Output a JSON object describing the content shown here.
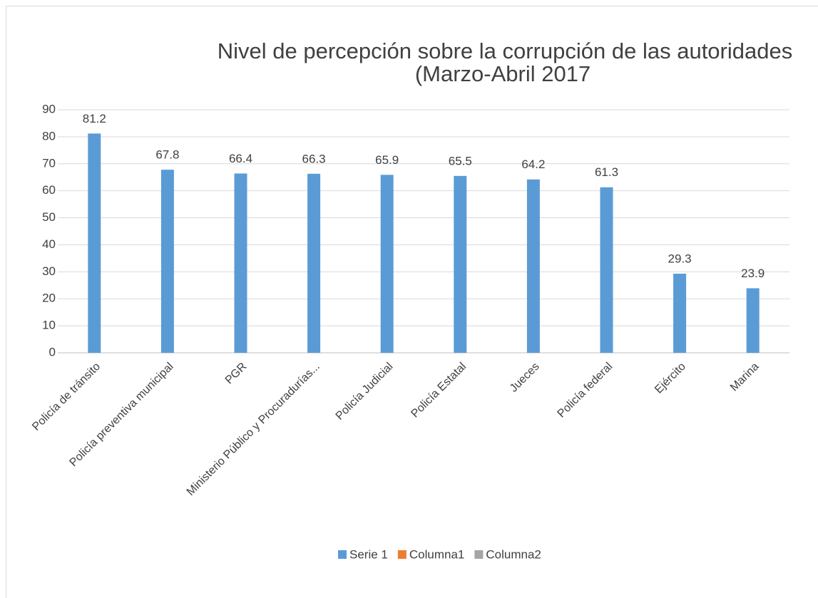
{
  "chart_data": {
    "type": "bar",
    "title": [
      "Nivel de percepción sobre la corrupción de las autoridades",
      "(Marzo-Abril 2017"
    ],
    "categories": [
      "Policía de tránsito",
      "Policía preventiva municipal",
      "PGR",
      "Ministerio Público y Procuradurías...",
      "Policía Judicial",
      "Policía Estatal",
      "Jueces",
      "Policía federal",
      "Ejército",
      "Marina"
    ],
    "series": [
      {
        "name": "Serie 1",
        "color": "#5b9bd5",
        "values": [
          81.2,
          67.8,
          66.4,
          66.3,
          65.9,
          65.5,
          64.2,
          61.3,
          29.3,
          23.9
        ]
      },
      {
        "name": "Columna1",
        "color": "#ed7d31",
        "values": [
          null,
          null,
          null,
          null,
          null,
          null,
          null,
          null,
          null,
          null
        ]
      },
      {
        "name": "Columna2",
        "color": "#a5a5a5",
        "values": [
          null,
          null,
          null,
          null,
          null,
          null,
          null,
          null,
          null,
          null
        ]
      }
    ],
    "ylim": [
      0,
      90
    ],
    "yticks": [
      0,
      10,
      20,
      30,
      40,
      50,
      60,
      70,
      80,
      90
    ],
    "grid": true,
    "legend": "bottom"
  }
}
